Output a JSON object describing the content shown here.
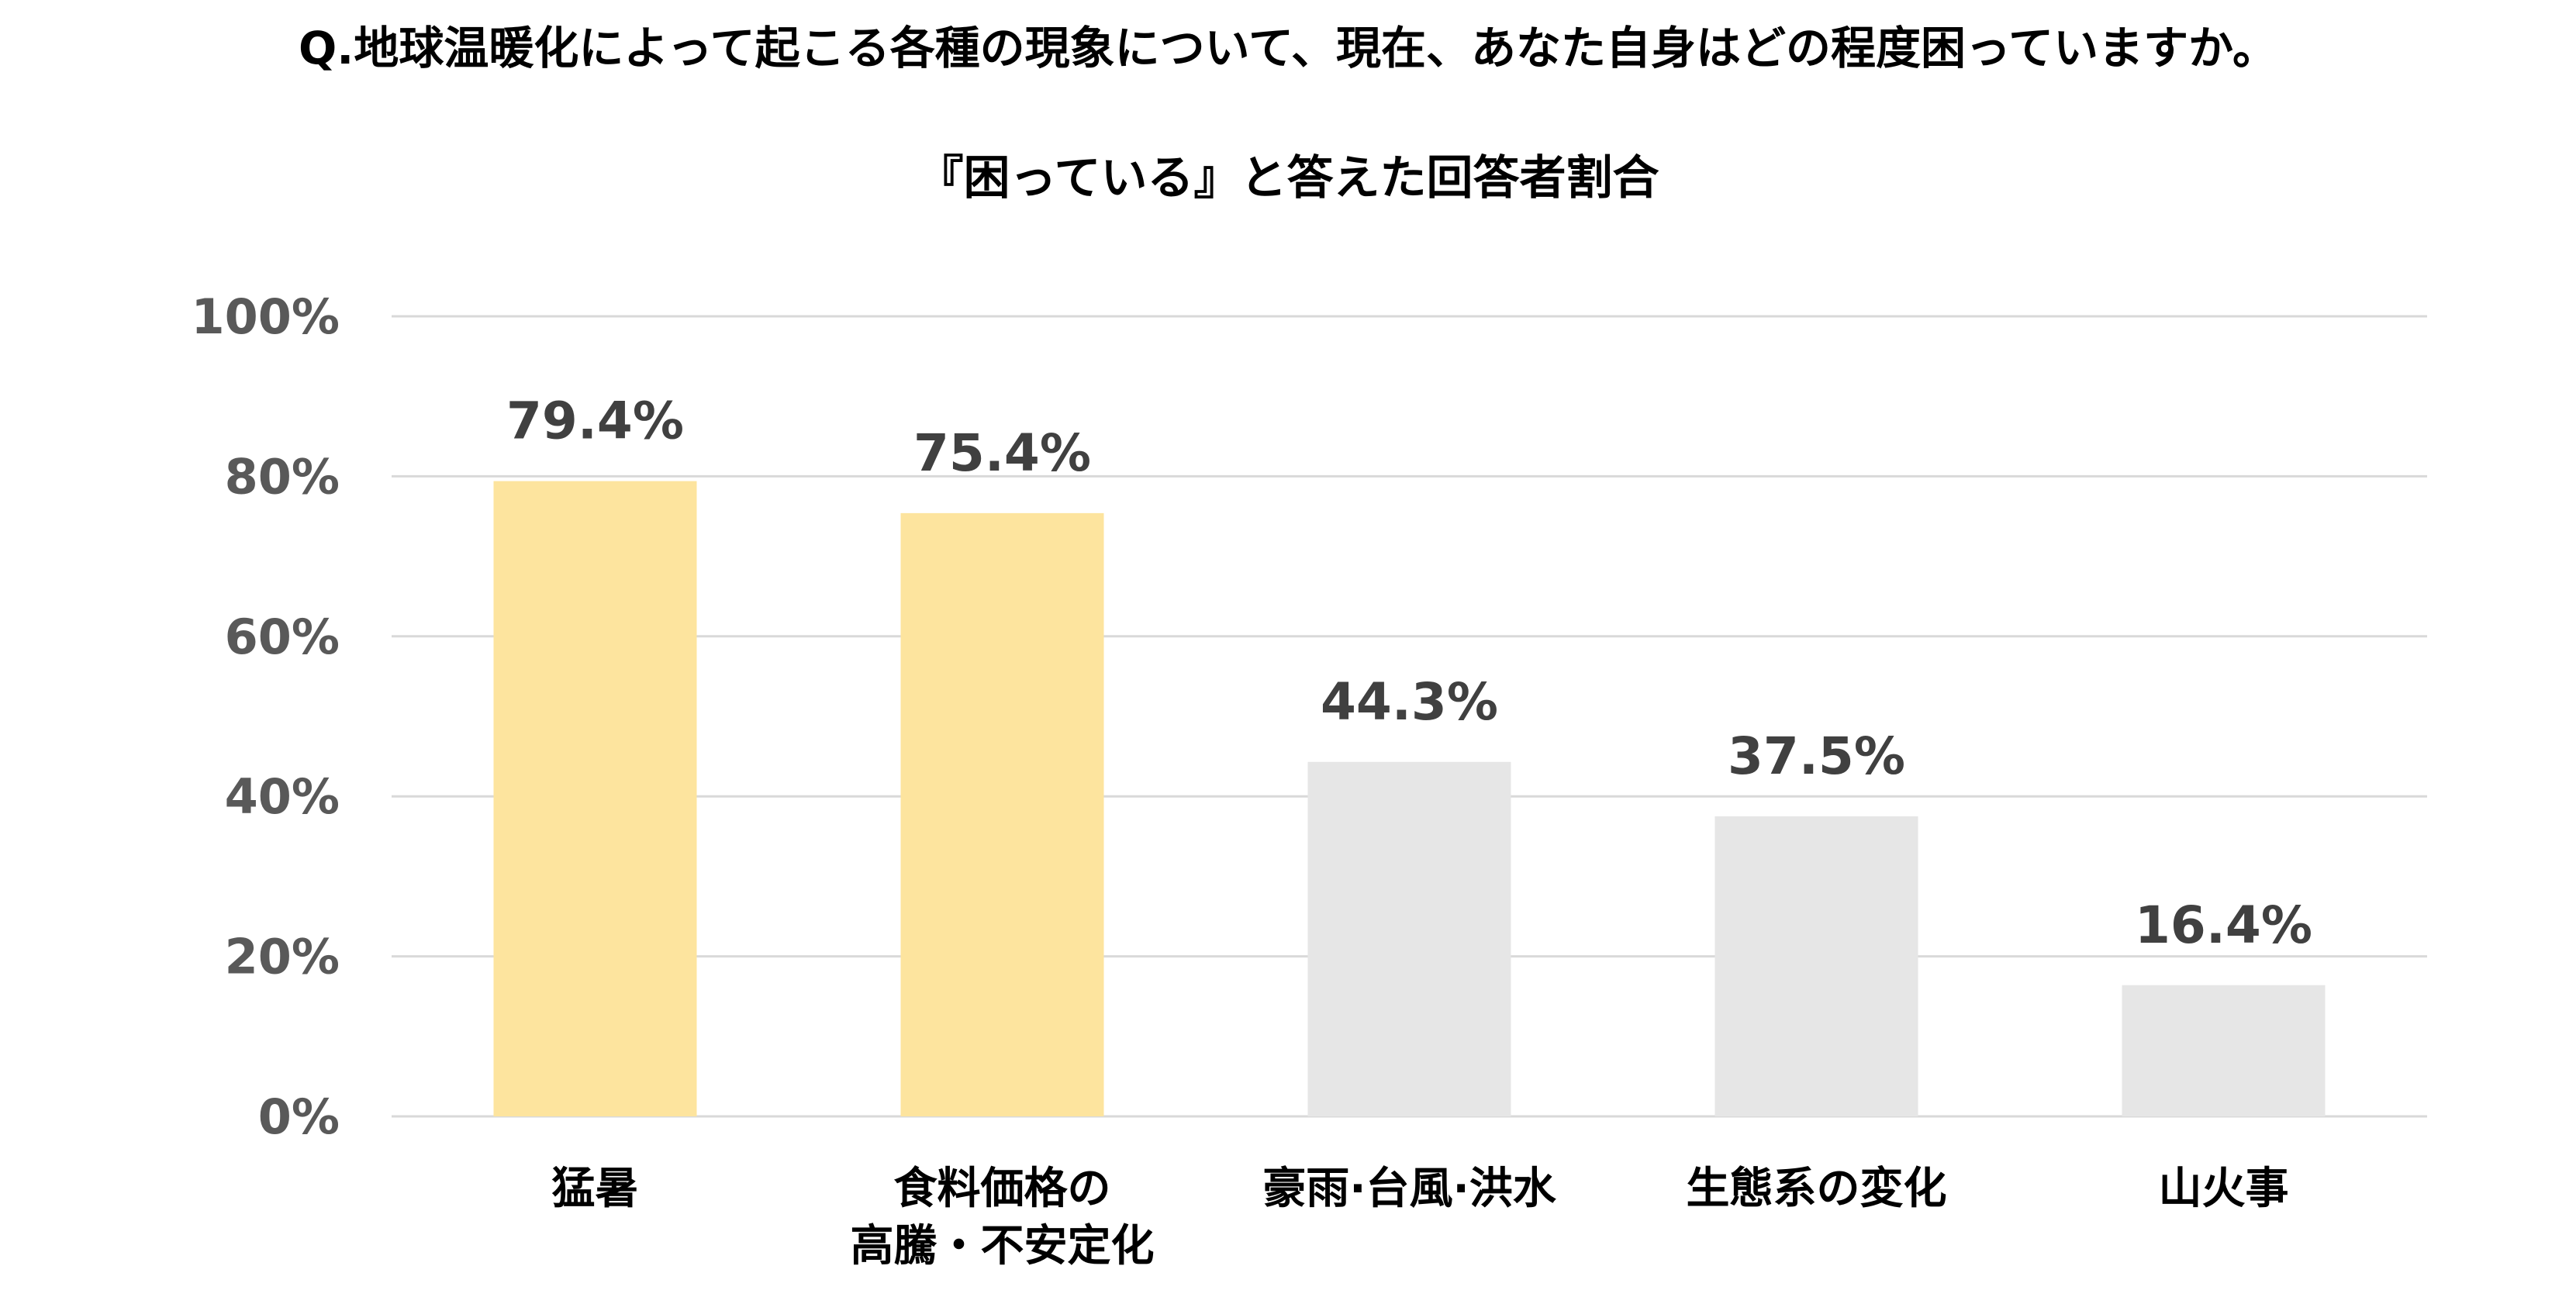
{
  "question": "Q.地球温暖化によって起こる各種の現象について、現在、あなた自身はどの程度困っていますか。",
  "chart_data": {
    "type": "bar",
    "title": "『困っている』と答えた回答者割合",
    "categories": [
      [
        "猛暑"
      ],
      [
        "食料価格の",
        "高騰・不安定化"
      ],
      [
        "豪雨·台風·洪水"
      ],
      [
        "生態系の変化"
      ],
      [
        "山火事"
      ]
    ],
    "values": [
      79.4,
      75.4,
      44.3,
      37.5,
      16.4
    ],
    "value_labels": [
      "79.4%",
      "75.4%",
      "44.3%",
      "37.5%",
      "16.4%"
    ],
    "bar_colors": [
      "#FDE49E",
      "#FDE49E",
      "#E6E6E6",
      "#E6E6E6",
      "#E6E6E6"
    ],
    "yticks": [
      0,
      20,
      40,
      60,
      80,
      100
    ],
    "ytick_labels": [
      "0%",
      "20%",
      "40%",
      "60%",
      "80%",
      "100%"
    ],
    "ylim": [
      0,
      100
    ],
    "grid": true,
    "gridline_color": "#D9D9D9",
    "xlabel": "",
    "ylabel": ""
  }
}
